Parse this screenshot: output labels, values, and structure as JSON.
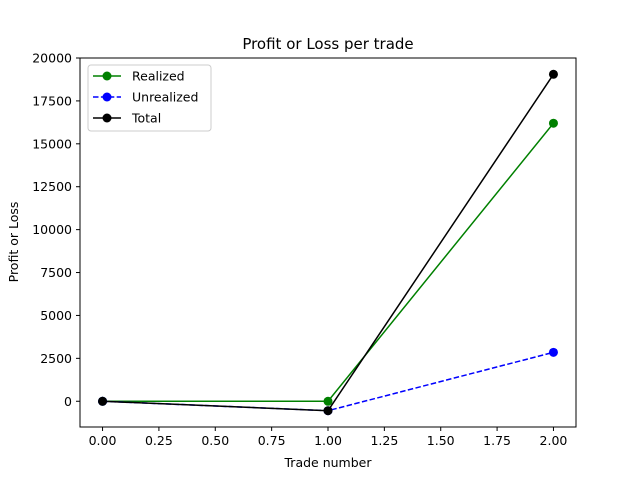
{
  "chart_data": {
    "type": "line",
    "title": "Profit or Loss per trade",
    "xlabel": "Trade number",
    "ylabel": "Profit or Loss",
    "xlim": [
      -0.1,
      2.1
    ],
    "ylim": [
      -1500,
      20000
    ],
    "xticks": [
      0.0,
      0.25,
      0.5,
      0.75,
      1.0,
      1.25,
      1.5,
      1.75,
      2.0
    ],
    "xtick_labels": [
      "0.00",
      "0.25",
      "0.50",
      "0.75",
      "1.00",
      "1.25",
      "1.50",
      "1.75",
      "2.00"
    ],
    "yticks": [
      0,
      2500,
      5000,
      7500,
      10000,
      12500,
      15000,
      17500,
      20000
    ],
    "ytick_labels": [
      "0",
      "2500",
      "5000",
      "7500",
      "10000",
      "12500",
      "15000",
      "17500",
      "20000"
    ],
    "grid": false,
    "legend_position": "top-left",
    "x": [
      0,
      1,
      2
    ],
    "series": [
      {
        "name": "Realized",
        "values": [
          0,
          0,
          16200
        ],
        "color": "#008000",
        "linestyle": "solid",
        "marker": "circle"
      },
      {
        "name": "Unrealized",
        "values": [
          0,
          -550,
          2850
        ],
        "color": "#0000ff",
        "linestyle": "dashed",
        "marker": "circle"
      },
      {
        "name": "Total",
        "values": [
          0,
          -550,
          19050
        ],
        "color": "#000000",
        "linestyle": "solid",
        "marker": "circle"
      }
    ]
  }
}
